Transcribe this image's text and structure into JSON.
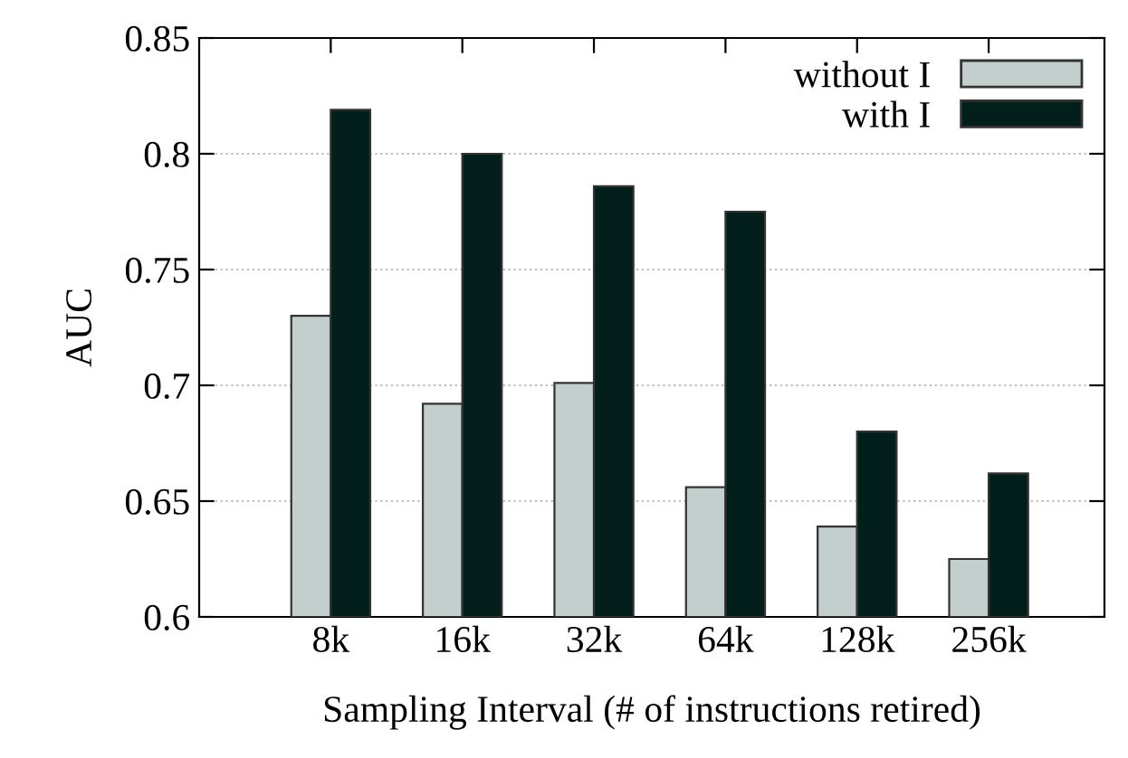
{
  "chart_data": {
    "type": "bar",
    "xlabel": "Sampling Interval (# of instructions retired)",
    "ylabel": "AUC",
    "categories": [
      "8k",
      "16k",
      "32k",
      "64k",
      "128k",
      "256k"
    ],
    "series": [
      {
        "name": "without I",
        "color": "#c3cfcc",
        "values": [
          0.73,
          0.692,
          0.701,
          0.656,
          0.639,
          0.625
        ]
      },
      {
        "name": "with I",
        "color": "#021f1b",
        "values": [
          0.819,
          0.8,
          0.786,
          0.775,
          0.68,
          0.662
        ]
      }
    ],
    "ylim": [
      0.6,
      0.85
    ],
    "yticks": [
      0.6,
      0.65,
      0.7,
      0.75,
      0.8,
      0.85
    ],
    "grid": "y",
    "legend": "top right"
  }
}
